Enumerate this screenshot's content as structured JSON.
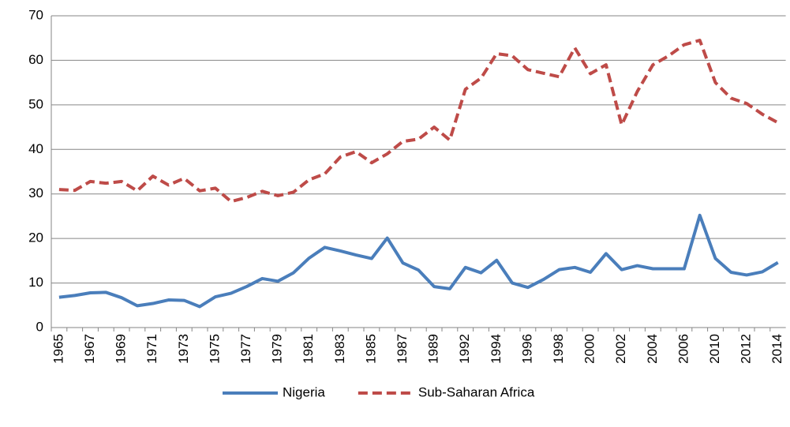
{
  "chart_data": {
    "type": "line",
    "categories": [
      "1965",
      null,
      "1967",
      null,
      "1969",
      null,
      "1971",
      null,
      "1973",
      null,
      "1975",
      null,
      "1977",
      null,
      "1979",
      null,
      "1981",
      null,
      "1983",
      null,
      "1985",
      null,
      "1987",
      null,
      "1989",
      null,
      "1992",
      null,
      "1994",
      null,
      "1996",
      null,
      "1998",
      null,
      "2000",
      null,
      "2002",
      null,
      "2004",
      null,
      "2006",
      null,
      "2010",
      null,
      "2012",
      null,
      "2014"
    ],
    "series": [
      {
        "name": "Nigeria",
        "color": "#4a7ebb",
        "dash": false,
        "values": [
          6.8,
          7.2,
          7.8,
          7.9,
          6.7,
          4.9,
          5.4,
          6.2,
          6.1,
          4.7,
          6.9,
          7.7,
          9.2,
          11.0,
          10.4,
          12.3,
          15.6,
          18.0,
          17.2,
          16.3,
          15.5,
          20.1,
          14.5,
          12.9,
          9.2,
          8.7,
          13.5,
          12.3,
          15.1,
          10.0,
          9.0,
          10.8,
          13.0,
          13.5,
          12.4,
          16.6,
          13.0,
          13.9,
          13.2,
          13.2,
          13.2,
          25.2,
          15.5,
          12.4,
          11.8,
          12.5,
          14.6
        ]
      },
      {
        "name": "Sub-Saharan Africa",
        "color": "#be4b48",
        "dash": true,
        "values": [
          31.0,
          30.8,
          32.8,
          32.4,
          32.8,
          30.7,
          34.0,
          32.0,
          33.5,
          30.7,
          31.3,
          28.3,
          29.2,
          30.6,
          29.6,
          30.4,
          33.2,
          34.5,
          38.3,
          39.5,
          37.0,
          39.0,
          41.8,
          42.3,
          45.0,
          42.1,
          53.5,
          56.0,
          61.5,
          61.0,
          57.9,
          57.1,
          56.3,
          62.8,
          57.0,
          59.0,
          45.5,
          53.0,
          59.0,
          61.0,
          63.5,
          64.5,
          55.0,
          51.5,
          50.3,
          47.9,
          46.0
        ]
      }
    ],
    "ylim": [
      0,
      70
    ],
    "yticks": [
      0,
      10,
      20,
      30,
      40,
      50,
      60,
      70
    ],
    "grid": true,
    "legend": "bottom"
  }
}
